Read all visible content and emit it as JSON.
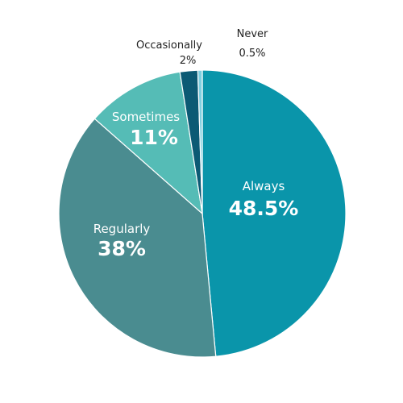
{
  "chart_data": {
    "type": "pie",
    "title": "",
    "slices": [
      {
        "name": "Always",
        "value": 48.5,
        "label": "48.5%",
        "color": "#0A95AA",
        "label_position": "inside"
      },
      {
        "name": "Regularly",
        "value": 38,
        "label": "38%",
        "color": "#4A8C90",
        "label_position": "inside"
      },
      {
        "name": "Sometimes",
        "value": 11,
        "label": "11%",
        "color": "#55BCB6",
        "label_position": "inside"
      },
      {
        "name": "Occasionally",
        "value": 2,
        "label": "2%",
        "color": "#0C5A74",
        "label_position": "outside"
      },
      {
        "name": "Never",
        "value": 0.5,
        "label": "0.5%",
        "color": "#7FCFE0",
        "label_position": "outside"
      }
    ],
    "start_angle_deg": 0,
    "direction": "clockwise",
    "legend": "none"
  }
}
